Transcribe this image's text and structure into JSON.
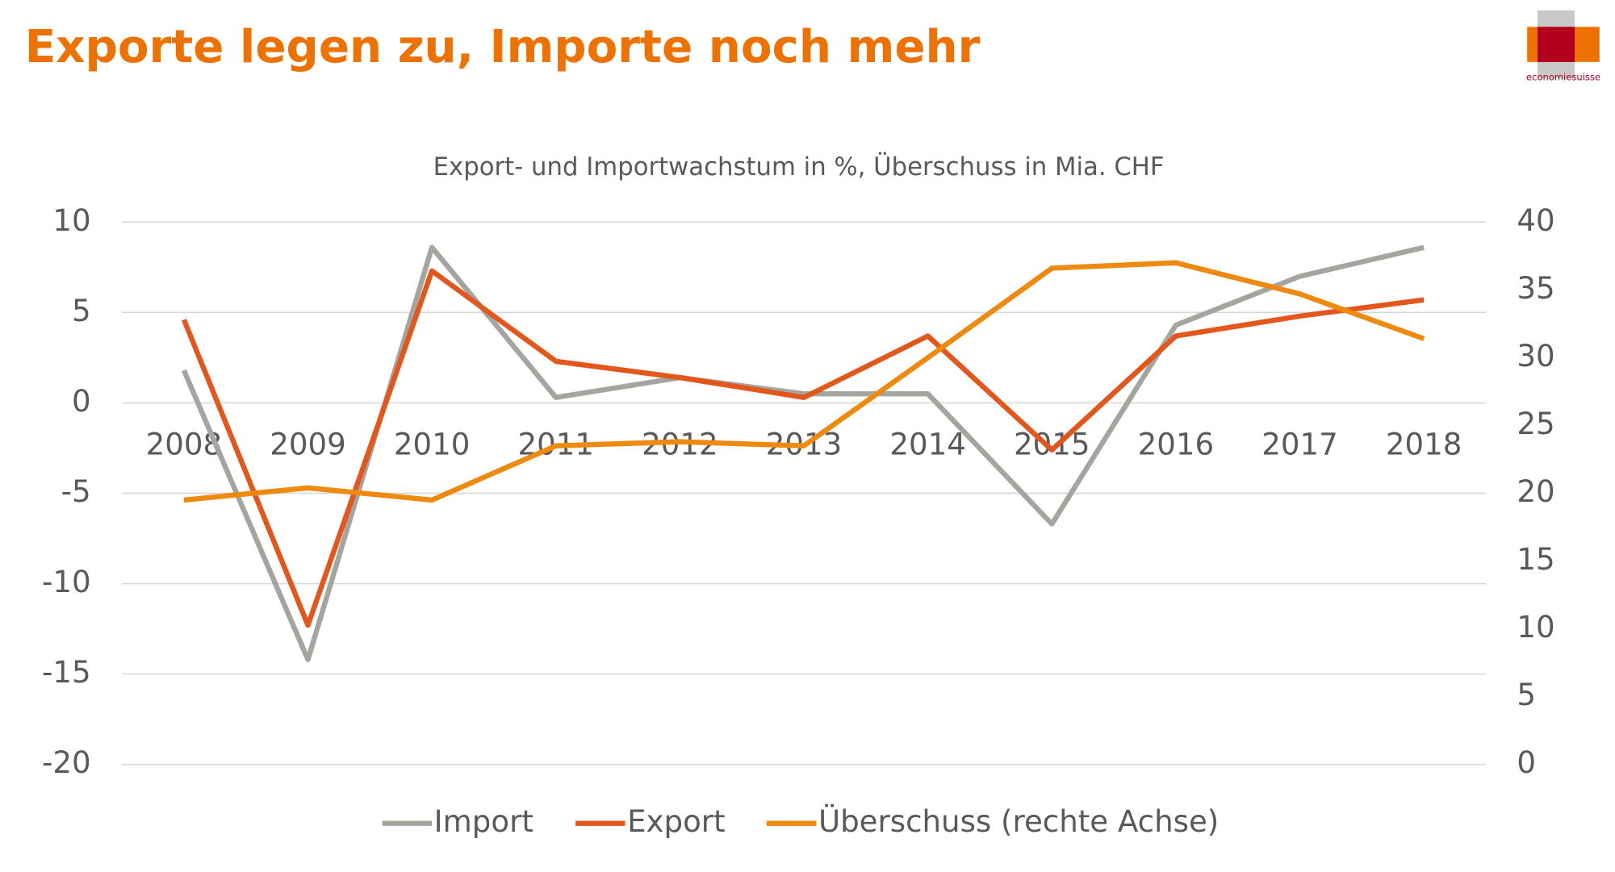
{
  "chart_data": {
    "type": "line",
    "title": "Exporte legen zu, Importe noch mehr",
    "subtitle": "Export- und Importwachstum in %, Überschuss in Mia. CHF",
    "categories": [
      "2008",
      "2009",
      "2010",
      "2011",
      "2012",
      "2013",
      "2014",
      "2015",
      "2016",
      "2017",
      "2018"
    ],
    "series": [
      {
        "name": "Import",
        "color": "#a5a5a0",
        "values": [
          1.8,
          -14.2,
          8.6,
          0.3,
          1.4,
          0.5,
          0.5,
          -6.7,
          4.3,
          7.0,
          8.6
        ]
      },
      {
        "name": "Export",
        "color": "#e4571c",
        "values": [
          4.6,
          -12.3,
          7.3,
          2.3,
          1.4,
          0.3,
          3.7,
          -2.6,
          3.7,
          4.8,
          5.7
        ]
      },
      {
        "name": "Überschuss (rechte Achse)",
        "color": "#ee8a0f",
        "axis": "y2",
        "values": [
          19.5,
          20.4,
          19.5,
          23.5,
          23.8,
          23.5,
          30.0,
          36.6,
          37.0,
          34.7,
          31.4
        ]
      }
    ],
    "ylim": [
      -20,
      10
    ],
    "yticks": [
      -20,
      -15,
      -10,
      -5,
      0,
      5,
      10
    ],
    "y2lim": [
      0,
      40
    ],
    "y2ticks": [
      0,
      5,
      10,
      15,
      20,
      25,
      30,
      35,
      40
    ],
    "grid": true,
    "legend": "bottom"
  },
  "logo": {
    "text": "economiesuisse"
  }
}
